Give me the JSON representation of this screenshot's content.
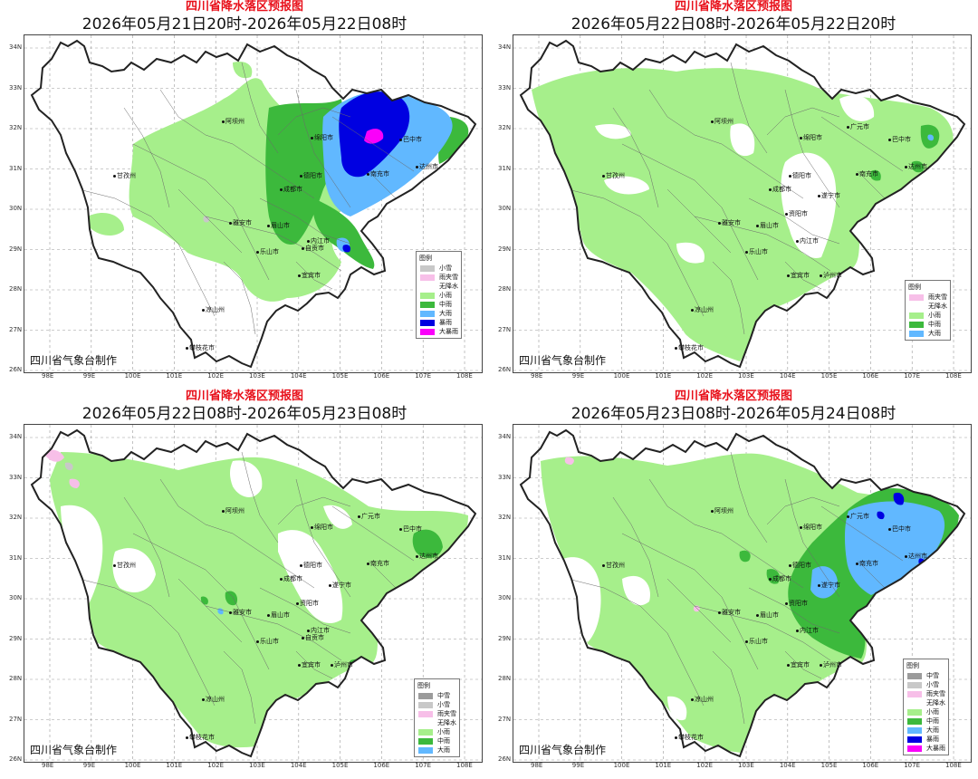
{
  "panels": [
    {
      "title": "四川省降水落区预报图",
      "date": "2026年05月21日20时-2026年05月22日08时",
      "credit": "四川省气象台制作",
      "legend_title": "图例",
      "legend": [
        {
          "label": "小雪",
          "color": "#c8c8c8"
        },
        {
          "label": "雨夹雪",
          "color": "#f7bfe8"
        },
        {
          "label": "无降水",
          "color": "#ffffff"
        },
        {
          "label": "小雨",
          "color": "#a6ef8b"
        },
        {
          "label": "中雨",
          "color": "#3cb93c"
        },
        {
          "label": "大雨",
          "color": "#61b8ff"
        },
        {
          "label": "暴雨",
          "color": "#0000e1"
        },
        {
          "label": "大暴雨",
          "color": "#fa00fa"
        }
      ],
      "cities": [
        "阿坝州",
        "甘孜州",
        "绵阳市",
        "德阳市",
        "成都市",
        "雅安市",
        "眉山市",
        "乐山市",
        "内江市",
        "自贡市",
        "宜宾市",
        "凉山州",
        "攀枝花市",
        "巴中市",
        "南充市",
        "达州市"
      ]
    },
    {
      "title": "四川省降水落区预报图",
      "date": "2026年05月22日08时-2026年05月22日20时",
      "credit": "四川省气象台制作",
      "legend_title": "图例",
      "legend": [
        {
          "label": "雨夹雪",
          "color": "#f7bfe8"
        },
        {
          "label": "无降水",
          "color": "#ffffff"
        },
        {
          "label": "小雨",
          "color": "#a6ef8b"
        },
        {
          "label": "中雨",
          "color": "#3cb93c"
        },
        {
          "label": "大雨",
          "color": "#61b8ff"
        }
      ],
      "cities": [
        "阿坝州",
        "甘孜州",
        "绵阳市",
        "德阳市",
        "成都市",
        "雅安市",
        "眉山市",
        "乐山市",
        "遂宁市",
        "内江市",
        "宜宾市",
        "泸州市",
        "凉山州",
        "攀枝花市",
        "广元市",
        "巴中市",
        "南充市",
        "达州市",
        "资阳市"
      ]
    },
    {
      "title": "四川省降水落区预报图",
      "date": "2026年05月22日08时-2026年05月23日08时",
      "credit": "四川省气象台制作",
      "legend_title": "图例",
      "legend": [
        {
          "label": "中雪",
          "color": "#9b9b9b"
        },
        {
          "label": "小雪",
          "color": "#c8c8c8"
        },
        {
          "label": "雨夹雪",
          "color": "#f7bfe8"
        },
        {
          "label": "无降水",
          "color": "#ffffff"
        },
        {
          "label": "小雨",
          "color": "#a6ef8b"
        },
        {
          "label": "中雨",
          "color": "#3cb93c"
        },
        {
          "label": "大雨",
          "color": "#61b8ff"
        }
      ],
      "cities": [
        "阿坝州",
        "甘孜州",
        "绵阳市",
        "德阳市",
        "成都市",
        "雅安市",
        "眉山市",
        "乐山市",
        "遂宁市",
        "内江市",
        "自贡市",
        "宜宾市",
        "泸州市",
        "凉山州",
        "攀枝花市",
        "广元市",
        "巴中市",
        "南充市",
        "达州市",
        "资阳市"
      ]
    },
    {
      "title": "四川省降水落区预报图",
      "date": "2026年05月23日08时-2026年05月24日08时",
      "credit": "四川省气象台制作",
      "legend_title": "图例",
      "legend": [
        {
          "label": "中雪",
          "color": "#9b9b9b"
        },
        {
          "label": "小雪",
          "color": "#c8c8c8"
        },
        {
          "label": "雨夹雪",
          "color": "#f7bfe8"
        },
        {
          "label": "无降水",
          "color": "#ffffff"
        },
        {
          "label": "小雨",
          "color": "#a6ef8b"
        },
        {
          "label": "中雨",
          "color": "#3cb93c"
        },
        {
          "label": "大雨",
          "color": "#61b8ff"
        },
        {
          "label": "暴雨",
          "color": "#0000e1"
        },
        {
          "label": "大暴雨",
          "color": "#fa00fa"
        }
      ],
      "cities": [
        "阿坝州",
        "甘孜州",
        "绵阳市",
        "德阳市",
        "成都市",
        "雅安市",
        "眉山市",
        "乐山市",
        "遂宁市",
        "内江市",
        "宜宾市",
        "泸州市",
        "凉山州",
        "攀枝花市",
        "广元市",
        "巴中市",
        "南充市",
        "达州市",
        "资阳市"
      ]
    }
  ],
  "lat_labels": [
    "34N",
    "33N",
    "32N",
    "31N",
    "30N",
    "29N",
    "28N",
    "27N",
    "26N"
  ],
  "lon_labels": [
    "98E",
    "99E",
    "100E",
    "101E",
    "102E",
    "103E",
    "104E",
    "105E",
    "106E",
    "107E",
    "108E"
  ],
  "colors": {
    "none": "#ffffff",
    "light_rain": "#a6ef8b",
    "moderate_rain": "#3cb93c",
    "heavy_rain": "#61b8ff",
    "rainstorm": "#0000e1",
    "heavy_rainstorm": "#fa00fa",
    "sleet": "#f7bfe8",
    "light_snow": "#c8c8c8",
    "moderate_snow": "#9b9b9b",
    "title_red": "#e8101a"
  }
}
